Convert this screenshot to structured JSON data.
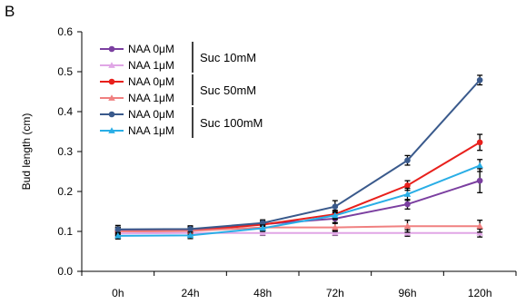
{
  "panel_label": "B",
  "chart_data": {
    "type": "line",
    "ylabel": "Bud length (cm)",
    "xlabel": "",
    "categories": [
      "0h",
      "24h",
      "48h",
      "72h",
      "96h",
      "120h"
    ],
    "ylim": [
      0,
      0.6
    ],
    "yticks": [
      "0.0",
      "0.1",
      "0.2",
      "0.3",
      "0.4",
      "0.5",
      "0.6"
    ],
    "grid": false,
    "legend_position": "top-left",
    "series": [
      {
        "name": "NAA 0μM",
        "group": "Suc 10mM",
        "color": "#7b3fa0",
        "marker": "circle",
        "values": [
          0.101,
          0.103,
          0.118,
          0.132,
          0.168,
          0.227
        ],
        "errors": [
          0.01,
          0.008,
          0.008,
          0.01,
          0.012,
          0.03
        ]
      },
      {
        "name": "NAA 1μM",
        "group": "Suc 10mM",
        "color": "#e0a6e6",
        "marker": "triangle",
        "values": [
          0.095,
          0.096,
          0.096,
          0.096,
          0.096,
          0.096
        ],
        "errors": [
          0.008,
          0.008,
          0.006,
          0.006,
          0.008,
          0.01
        ]
      },
      {
        "name": "NAA 0μM",
        "group": "Suc 50mM",
        "color": "#e8201c",
        "marker": "circle",
        "values": [
          0.1,
          0.101,
          0.117,
          0.143,
          0.215,
          0.323
        ],
        "errors": [
          0.01,
          0.008,
          0.008,
          0.01,
          0.012,
          0.02
        ]
      },
      {
        "name": "NAA 1μM",
        "group": "Suc 50mM",
        "color": "#f08080",
        "marker": "triangle",
        "values": [
          0.1,
          0.101,
          0.11,
          0.11,
          0.113,
          0.113
        ],
        "errors": [
          0.008,
          0.008,
          0.008,
          0.01,
          0.015,
          0.015
        ]
      },
      {
        "name": "NAA 0μM",
        "group": "Suc 100mM",
        "color": "#3a5a8c",
        "marker": "circle",
        "values": [
          0.105,
          0.106,
          0.121,
          0.162,
          0.278,
          0.479
        ],
        "errors": [
          0.01,
          0.008,
          0.008,
          0.015,
          0.012,
          0.012
        ]
      },
      {
        "name": "NAA 1μM",
        "group": "Suc 100mM",
        "color": "#29aee6",
        "marker": "triangle",
        "values": [
          0.089,
          0.09,
          0.108,
          0.14,
          0.193,
          0.265
        ],
        "errors": [
          0.008,
          0.008,
          0.008,
          0.01,
          0.015,
          0.015
        ]
      }
    ],
    "legend_groups": [
      "Suc 10mM",
      "Suc 50mM",
      "Suc 100mM"
    ]
  }
}
